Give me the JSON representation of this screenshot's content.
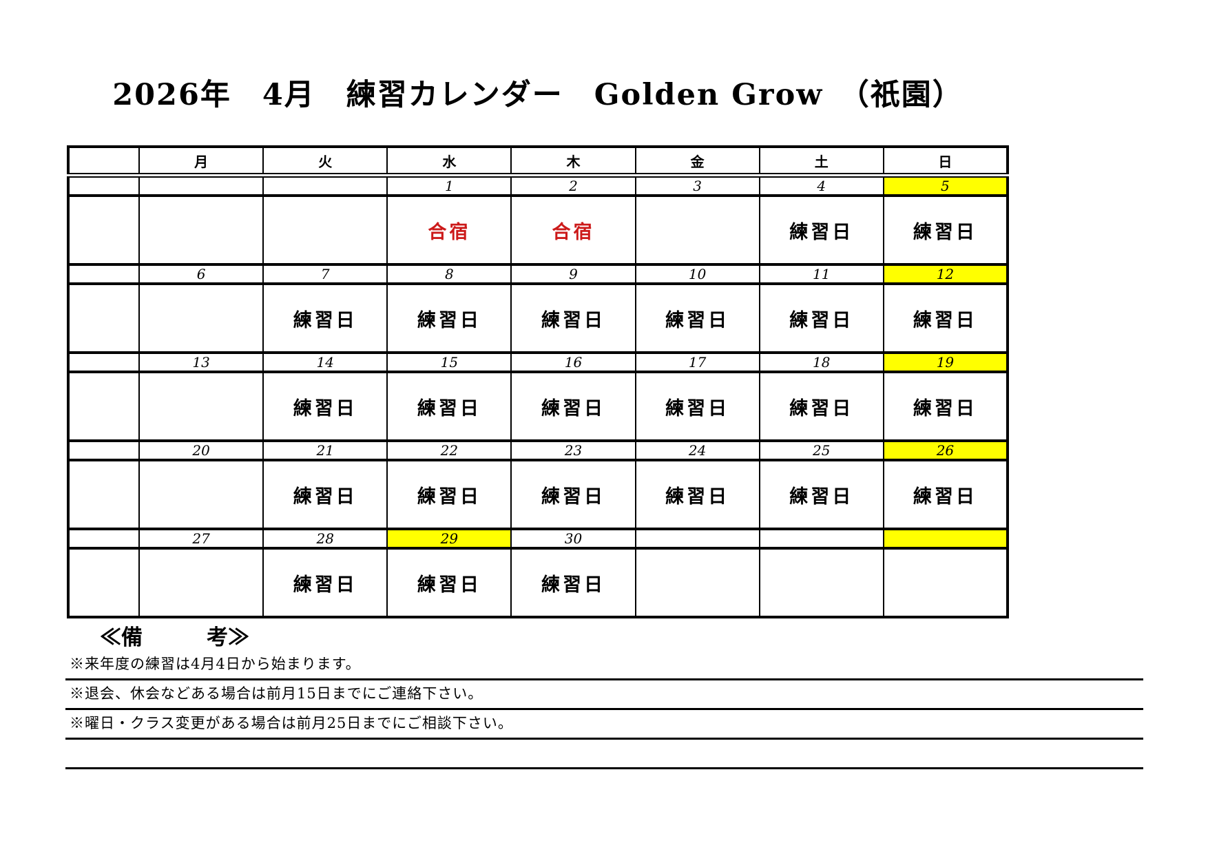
{
  "page": {
    "title": "2026年　4月　練習カレンダー　Golden Grow　（祇園）"
  },
  "colors": {
    "highlight_yellow": "#ffff00",
    "camp_red": "#cc1a1a"
  },
  "calendar": {
    "corner_label": "",
    "day_headers": [
      "月",
      "火",
      "水",
      "木",
      "金",
      "土",
      "日"
    ],
    "weeks": [
      {
        "dates": [
          "",
          "",
          "",
          "1",
          "2",
          "3",
          "4",
          "5"
        ],
        "date_highlight_cols": [
          7
        ],
        "entries": [
          "",
          "",
          "",
          "合宿",
          "合宿",
          "",
          "練習日",
          "練習日"
        ],
        "camp_cols": [
          3,
          4
        ]
      },
      {
        "dates": [
          "",
          "6",
          "7",
          "8",
          "9",
          "10",
          "11",
          "12"
        ],
        "date_highlight_cols": [
          7
        ],
        "entries": [
          "",
          "",
          "練習日",
          "練習日",
          "練習日",
          "練習日",
          "練習日",
          "練習日"
        ],
        "camp_cols": []
      },
      {
        "dates": [
          "",
          "13",
          "14",
          "15",
          "16",
          "17",
          "18",
          "19"
        ],
        "date_highlight_cols": [
          7
        ],
        "entries": [
          "",
          "",
          "練習日",
          "練習日",
          "練習日",
          "練習日",
          "練習日",
          "練習日"
        ],
        "camp_cols": []
      },
      {
        "dates": [
          "",
          "20",
          "21",
          "22",
          "23",
          "24",
          "25",
          "26"
        ],
        "date_highlight_cols": [
          7
        ],
        "entries": [
          "",
          "",
          "練習日",
          "練習日",
          "練習日",
          "練習日",
          "練習日",
          "練習日"
        ],
        "camp_cols": []
      },
      {
        "dates": [
          "",
          "27",
          "28",
          "29",
          "30",
          "",
          "",
          ""
        ],
        "date_highlight_cols": [
          3,
          7
        ],
        "entries": [
          "",
          "",
          "練習日",
          "練習日",
          "練習日",
          "",
          "",
          ""
        ],
        "camp_cols": []
      }
    ]
  },
  "remarks": {
    "heading": "≪備　　　考≫",
    "notes": [
      "※来年度の練習は4月4日から始まります。",
      "※退会、休会などある場合は前月15日までにご連絡下さい。",
      "※曜日・クラス変更がある場合は前月25日までにご相談下さい。",
      ""
    ]
  }
}
